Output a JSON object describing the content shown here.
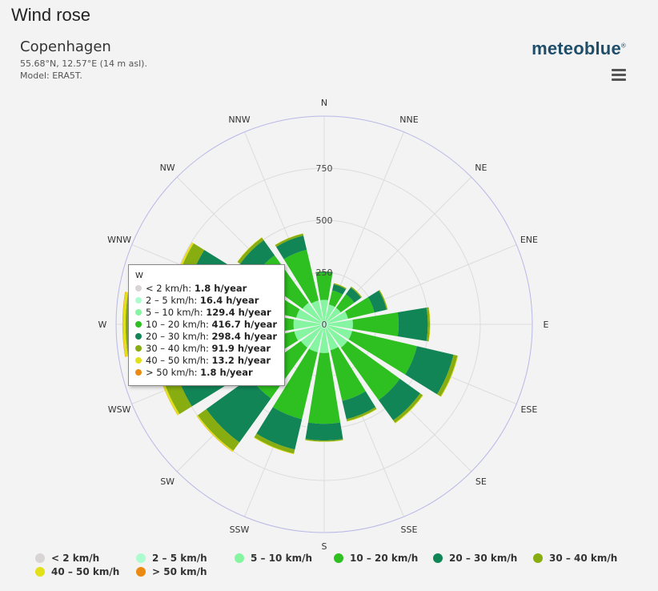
{
  "header": {
    "page_title": "Wind rose",
    "chart_title": "Copenhagen",
    "location": "55.68°N, 12.57°E (14 m asl).",
    "model": "Model: ERA5T.",
    "brand": "meteoblue",
    "brand_mark": "®"
  },
  "colors": {
    "bins": [
      "#d9d4d4",
      "#adfcd0",
      "#85f5a1",
      "#2ebf20",
      "#128557",
      "#87ad10",
      "#e2e018",
      "#eb8a10"
    ],
    "grid": "#dcdcdc",
    "outer_ring": "#b8b8e6"
  },
  "tooltip": {
    "direction": "W",
    "rows": [
      {
        "label": "< 2 km/h: ",
        "value": "1.8 h/year"
      },
      {
        "label": "2 – 5 km/h: ",
        "value": "16.4 h/year"
      },
      {
        "label": "5 – 10 km/h: ",
        "value": "129.4 h/year"
      },
      {
        "label": "10 – 20 km/h: ",
        "value": "416.7 h/year"
      },
      {
        "label": "20 – 30 km/h: ",
        "value": "298.4 h/year"
      },
      {
        "label": "30 – 40 km/h: ",
        "value": "91.9 h/year"
      },
      {
        "label": "40 – 50 km/h: ",
        "value": "13.2 h/year"
      },
      {
        "label": "> 50 km/h: ",
        "value": "1.8 h/year"
      }
    ]
  },
  "chart_data": {
    "type": "polar-stacked-bar",
    "title": "Copenhagen",
    "directions": [
      "N",
      "NNE",
      "NE",
      "ENE",
      "E",
      "ESE",
      "SE",
      "SSE",
      "S",
      "SSW",
      "SW",
      "WSW",
      "W",
      "WNW",
      "NW",
      "NNW"
    ],
    "radial_ticks": [
      "0",
      "250",
      "500",
      "750"
    ],
    "radial_max": 1000,
    "legend": [
      "< 2 km/h",
      "2 – 5 km/h",
      "5 – 10 km/h",
      "10 – 20 km/h",
      "20 – 30 km/h",
      "30 – 40 km/h",
      "40 – 50 km/h",
      "> 50 km/h"
    ],
    "series": [
      {
        "name": "< 2 km/h",
        "values": [
          2,
          2,
          2,
          2,
          2,
          2,
          2,
          2,
          2,
          2,
          2,
          2,
          1.8,
          2,
          2,
          2
        ]
      },
      {
        "name": "2 – 5 km/h",
        "values": [
          16,
          16,
          16,
          16,
          16,
          16,
          16,
          16,
          16,
          16,
          16,
          16,
          16.4,
          16,
          16,
          16
        ]
      },
      {
        "name": "5 – 10 km/h",
        "values": [
          100,
          80,
          80,
          100,
          120,
          120,
          120,
          110,
          120,
          120,
          120,
          130,
          129.4,
          120,
          110,
          100
        ]
      },
      {
        "name": "10 – 20 km/h",
        "values": [
          130,
          70,
          80,
          130,
          220,
          320,
          310,
          250,
          340,
          330,
          300,
          330,
          416.7,
          290,
          280,
          250
        ]
      },
      {
        "name": "20 – 30 km/h",
        "values": [
          5,
          30,
          40,
          60,
          140,
          180,
          120,
          90,
          80,
          150,
          260,
          270,
          298.4,
          250,
          90,
          70
        ]
      },
      {
        "name": "30 – 40 km/h",
        "values": [
          2,
          5,
          5,
          5,
          10,
          20,
          15,
          10,
          5,
          20,
          50,
          70,
          91.9,
          60,
          15,
          10
        ]
      },
      {
        "name": "40 – 50 km/h",
        "values": [
          0,
          1,
          1,
          1,
          2,
          3,
          3,
          2,
          1,
          3,
          6,
          10,
          13.2,
          8,
          2,
          1
        ]
      },
      {
        "name": "> 50 km/h",
        "values": [
          0,
          0,
          0,
          0,
          0,
          0,
          0,
          0,
          0,
          0,
          1,
          1,
          1.8,
          1,
          0,
          0
        ]
      }
    ]
  }
}
